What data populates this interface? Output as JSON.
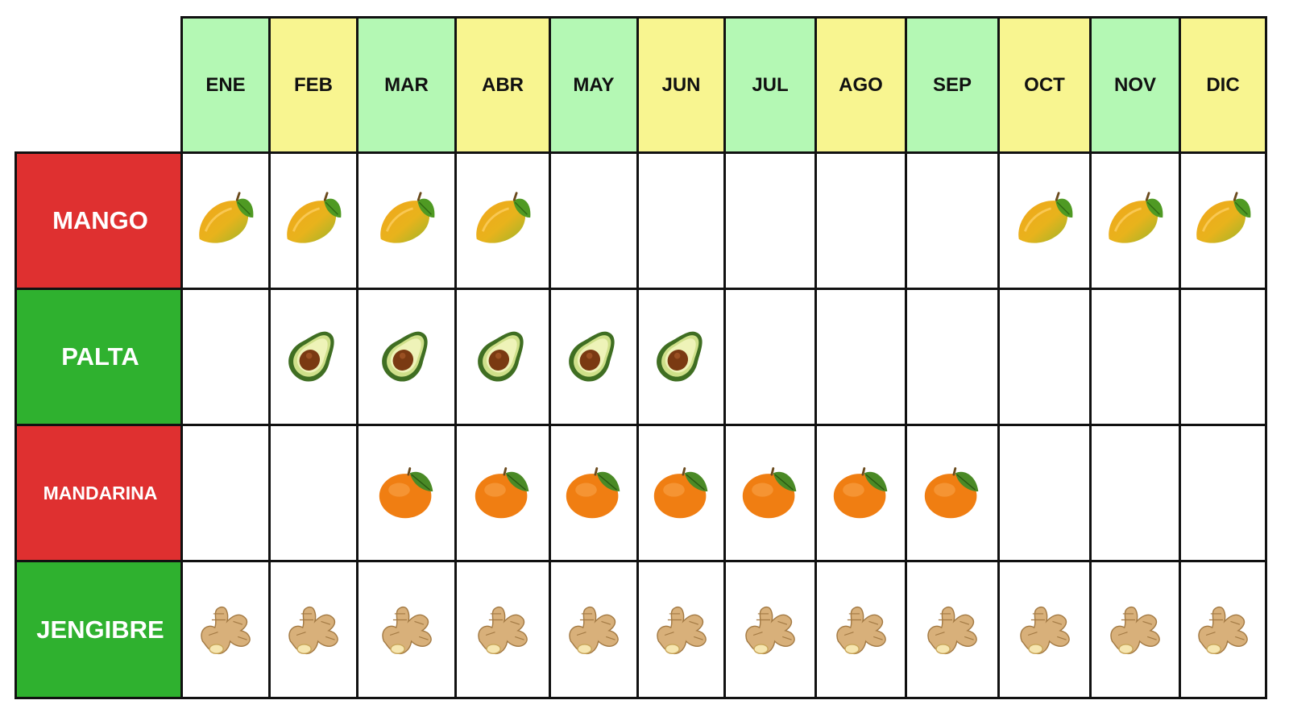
{
  "months": [
    "ENE",
    "FEB",
    "MAR",
    "ABR",
    "MAY",
    "JUN",
    "JUL",
    "AGO",
    "SEP",
    "OCT",
    "NOV",
    "DIC"
  ],
  "colors": {
    "header_green": "#b4f8b4",
    "header_yellow": "#f8f590",
    "label_red": "#df3030",
    "label_green": "#2fb12f",
    "grid_line": "#111111"
  },
  "fruits": [
    {
      "label": "MANGO",
      "icon": "mango-icon",
      "label_color": "#df3030",
      "in_season": [
        true,
        true,
        true,
        true,
        false,
        false,
        false,
        false,
        false,
        true,
        true,
        true
      ]
    },
    {
      "label": "PALTA",
      "icon": "avocado-icon",
      "label_color": "#2fb12f",
      "in_season": [
        false,
        true,
        true,
        true,
        true,
        true,
        false,
        false,
        false,
        false,
        false,
        false
      ]
    },
    {
      "label": "MANDARINA",
      "icon": "tangerine-icon",
      "label_color": "#df3030",
      "in_season": [
        false,
        false,
        true,
        true,
        true,
        true,
        true,
        true,
        true,
        false,
        false,
        false
      ]
    },
    {
      "label": "JENGIBRE",
      "icon": "ginger-icon",
      "label_color": "#2fb12f",
      "in_season": [
        true,
        true,
        true,
        true,
        true,
        true,
        true,
        true,
        true,
        true,
        true,
        true
      ]
    }
  ]
}
